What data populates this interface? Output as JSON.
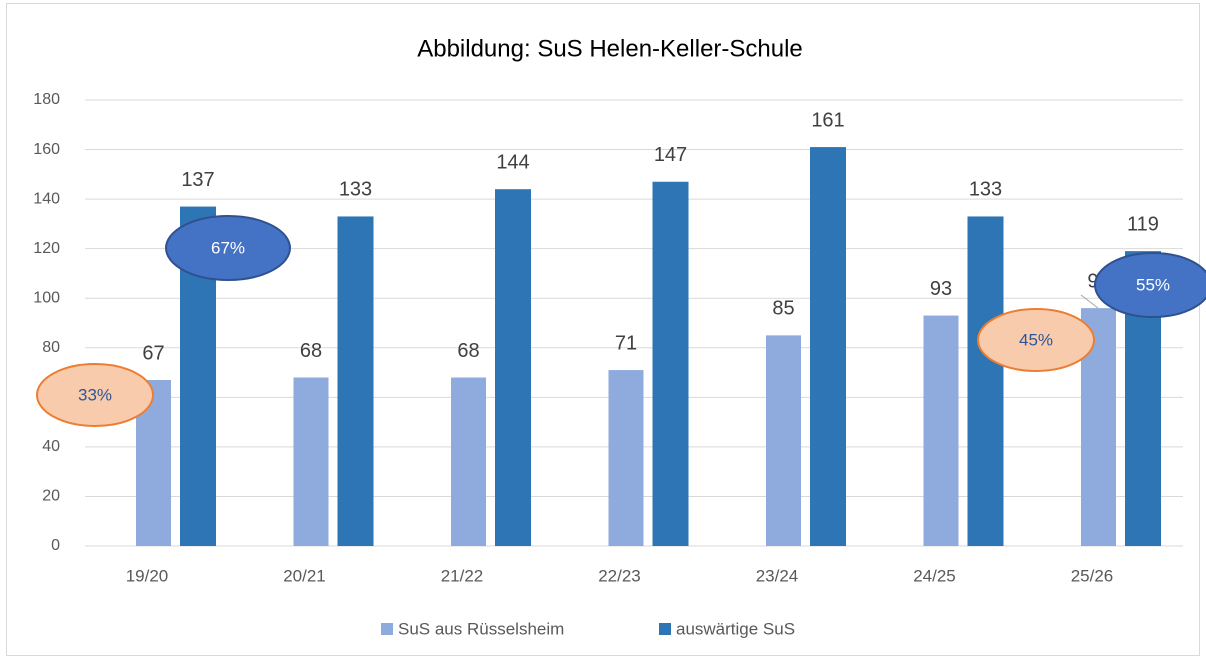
{
  "chart_data": {
    "type": "bar",
    "title": "Abbildung: SuS Helen-Keller-Schule",
    "categories": [
      "19/20",
      "20/21",
      "21/22",
      "22/23",
      "23/24",
      "24/25",
      "25/26"
    ],
    "series": [
      {
        "name": "SuS aus Rüsselsheim",
        "color": "#8faadc",
        "values": [
          67,
          68,
          68,
          71,
          85,
          93,
          96
        ]
      },
      {
        "name": "auswärtige SuS",
        "color": "#2e75b6",
        "values": [
          137,
          133,
          144,
          147,
          161,
          133,
          119
        ]
      }
    ],
    "ylim": [
      0,
      180
    ],
    "yticks": [
      0,
      20,
      40,
      60,
      80,
      100,
      120,
      140,
      160,
      180
    ],
    "grid": true,
    "legend": "bottom",
    "annotations": [
      {
        "text": "33%"
      },
      {
        "text": "67%"
      },
      {
        "text": "45%"
      },
      {
        "text": "55%"
      }
    ]
  }
}
